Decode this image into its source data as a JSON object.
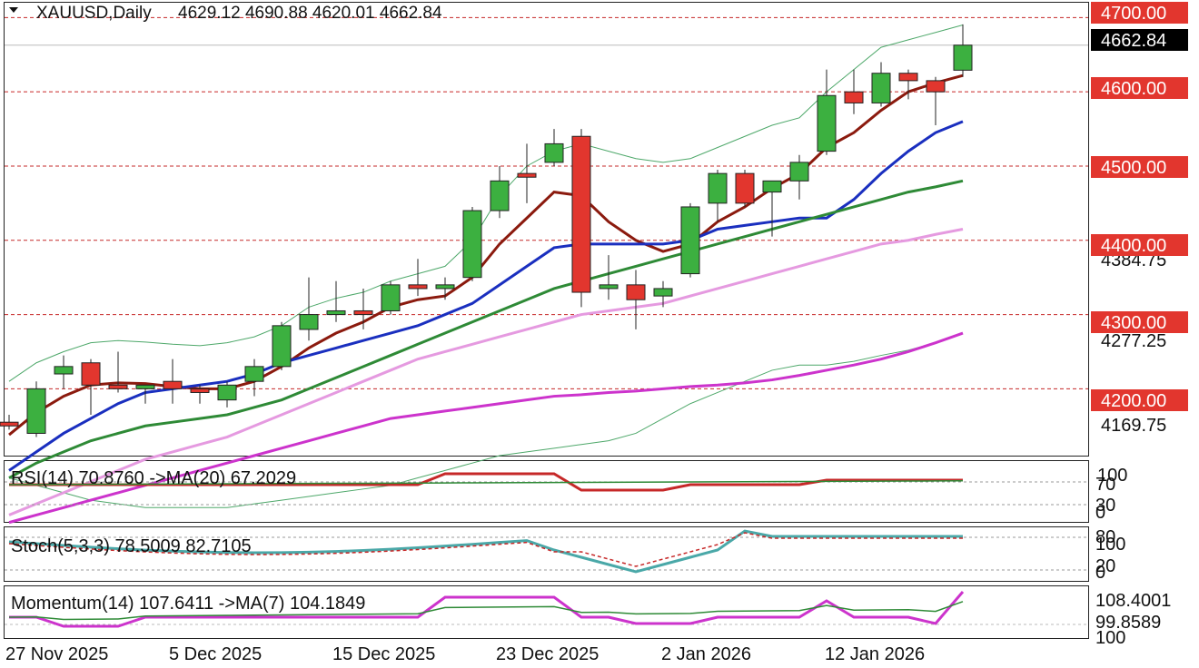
{
  "header": {
    "symbol": "XAUUSD,Daily",
    "ohlc": "4629.12 4690.88 4620.01 4662.84"
  },
  "price_axis": {
    "current_price": "4662.84",
    "level_labels": [
      "4700.00",
      "4600.00",
      "4500.00",
      "4400.00",
      "4300.00",
      "4200.00"
    ],
    "plain_labels": [
      "4384.75",
      "4277.25",
      "4169.75"
    ]
  },
  "indicators": {
    "rsi": {
      "label": "RSI(14) 70.8760  ->MA(20) 67.2029",
      "scale": [
        "100",
        "70",
        "30",
        "0"
      ]
    },
    "stoch": {
      "label": "Stoch(5,3,3) 78.5009 82.7105",
      "scale": [
        "80",
        "100",
        "20",
        "0"
      ]
    },
    "momentum": {
      "label": "Momentum(14) 107.6411  ->MA(7) 104.1849",
      "scale": [
        "108.4001",
        "99.8589",
        "100"
      ]
    }
  },
  "time_axis": {
    "labels": [
      "27 Nov 2025",
      "5 Dec 2025",
      "15 Dec 2025",
      "23 Dec 2025",
      "2 Jan 2026",
      "12 Jan 2026"
    ]
  },
  "colors": {
    "bull": "#3cb040",
    "bear": "#e2362e",
    "ma_fast": "#8b1a0e",
    "ma_mid": "#1a2fbf",
    "ma_slow": "#2e8a36",
    "ma_pink": "#e59ae0",
    "ma_magenta": "#cc33cc",
    "band": "#4ea86a",
    "level": "#c62828",
    "rsi_line": "#c62828",
    "rsi_ma": "#2e8a36",
    "stoch_main": "#4aa8a8",
    "stoch_signal": "#c62828",
    "momentum_main": "#cc33cc",
    "momentum_ma": "#2e8a36"
  },
  "chart_data": {
    "type": "candlestick",
    "symbol": "XAUUSD",
    "timeframe": "Daily",
    "ylim": [
      4110,
      4720
    ],
    "grid": false,
    "candles": [
      {
        "o": 4155,
        "h": 4165,
        "l": 4145,
        "c": 4150
      },
      {
        "o": 4140,
        "h": 4210,
        "l": 4135,
        "c": 4200
      },
      {
        "o": 4220,
        "h": 4245,
        "l": 4200,
        "c": 4230
      },
      {
        "o": 4235,
        "h": 4240,
        "l": 4165,
        "c": 4205
      },
      {
        "o": 4205,
        "h": 4250,
        "l": 4195,
        "c": 4200
      },
      {
        "o": 4200,
        "h": 4205,
        "l": 4180,
        "c": 4205
      },
      {
        "o": 4210,
        "h": 4240,
        "l": 4180,
        "c": 4200
      },
      {
        "o": 4200,
        "h": 4205,
        "l": 4180,
        "c": 4195
      },
      {
        "o": 4185,
        "h": 4210,
        "l": 4175,
        "c": 4205
      },
      {
        "o": 4210,
        "h": 4240,
        "l": 4190,
        "c": 4230
      },
      {
        "o": 4230,
        "h": 4290,
        "l": 4225,
        "c": 4285
      },
      {
        "o": 4280,
        "h": 4350,
        "l": 4265,
        "c": 4300
      },
      {
        "o": 4300,
        "h": 4345,
        "l": 4290,
        "c": 4305
      },
      {
        "o": 4305,
        "h": 4335,
        "l": 4280,
        "c": 4300
      },
      {
        "o": 4305,
        "h": 4345,
        "l": 4300,
        "c": 4340
      },
      {
        "o": 4340,
        "h": 4375,
        "l": 4325,
        "c": 4335
      },
      {
        "o": 4335,
        "h": 4350,
        "l": 4320,
        "c": 4340
      },
      {
        "o": 4350,
        "h": 4445,
        "l": 4345,
        "c": 4440
      },
      {
        "o": 4440,
        "h": 4500,
        "l": 4430,
        "c": 4480
      },
      {
        "o": 4490,
        "h": 4530,
        "l": 4450,
        "c": 4485
      },
      {
        "o": 4505,
        "h": 4550,
        "l": 4500,
        "c": 4530
      },
      {
        "o": 4540,
        "h": 4550,
        "l": 4310,
        "c": 4330
      },
      {
        "o": 4335,
        "h": 4380,
        "l": 4320,
        "c": 4340
      },
      {
        "o": 4340,
        "h": 4360,
        "l": 4280,
        "c": 4320
      },
      {
        "o": 4325,
        "h": 4345,
        "l": 4310,
        "c": 4335
      },
      {
        "o": 4355,
        "h": 4450,
        "l": 4350,
        "c": 4445
      },
      {
        "o": 4450,
        "h": 4495,
        "l": 4425,
        "c": 4490
      },
      {
        "o": 4490,
        "h": 4495,
        "l": 4445,
        "c": 4450
      },
      {
        "o": 4465,
        "h": 4475,
        "l": 4405,
        "c": 4480
      },
      {
        "o": 4480,
        "h": 4515,
        "l": 4455,
        "c": 4505
      },
      {
        "o": 4520,
        "h": 4630,
        "l": 4515,
        "c": 4595
      },
      {
        "o": 4600,
        "h": 4630,
        "l": 4570,
        "c": 4585
      },
      {
        "o": 4585,
        "h": 4640,
        "l": 4580,
        "c": 4625
      },
      {
        "o": 4625,
        "h": 4630,
        "l": 4590,
        "c": 4615
      },
      {
        "o": 4615,
        "h": 4620,
        "l": 4555,
        "c": 4600
      },
      {
        "o": 4629.12,
        "h": 4690.88,
        "l": 4620.01,
        "c": 4662.84
      }
    ],
    "moving_averages": [
      {
        "color": "#8b1a0e",
        "values": [
          4138,
          4168,
          4190,
          4205,
          4208,
          4207,
          4203,
          4200,
          4200,
          4210,
          4230,
          4255,
          4275,
          4290,
          4310,
          4320,
          4325,
          4350,
          4395,
          4430,
          4465,
          4460,
          4425,
          4400,
          4385,
          4395,
          4425,
          4445,
          4470,
          4490,
          4525,
          4545,
          4575,
          4600,
          4612,
          4622
        ]
      },
      {
        "color": "#1a2fbf",
        "values": [
          4090,
          4115,
          4140,
          4160,
          4180,
          4195,
          4200,
          4205,
          4210,
          4220,
          4235,
          4245,
          4255,
          4265,
          4275,
          4285,
          4300,
          4315,
          4340,
          4365,
          4390,
          4395,
          4395,
          4395,
          4395,
          4400,
          4415,
          4420,
          4425,
          4430,
          4430,
          4455,
          4490,
          4520,
          4545,
          4560
        ]
      },
      {
        "color": "#2e8a36",
        "values": [
          4080,
          4100,
          4115,
          4130,
          4140,
          4150,
          4155,
          4160,
          4165,
          4175,
          4185,
          4200,
          4215,
          4230,
          4245,
          4260,
          4275,
          4290,
          4305,
          4320,
          4335,
          4345,
          4355,
          4365,
          4375,
          4385,
          4395,
          4405,
          4415,
          4425,
          4435,
          4445,
          4455,
          4465,
          4472,
          4480
        ]
      },
      {
        "color": "#e59ae0",
        "values": [
          4030,
          4045,
          4060,
          4075,
          4090,
          4105,
          4115,
          4125,
          4135,
          4150,
          4165,
          4180,
          4195,
          4210,
          4225,
          4240,
          4250,
          4260,
          4270,
          4280,
          4290,
          4300,
          4305,
          4310,
          4315,
          4325,
          4335,
          4345,
          4355,
          4365,
          4375,
          4385,
          4395,
          4400,
          4408,
          4415
        ]
      },
      {
        "color": "#cc33cc",
        "values": [
          4020,
          4030,
          4040,
          4050,
          4060,
          4070,
          4080,
          4090,
          4100,
          4110,
          4120,
          4130,
          4140,
          4150,
          4160,
          4165,
          4170,
          4175,
          4180,
          4185,
          4190,
          4192,
          4195,
          4197,
          4200,
          4203,
          4205,
          4208,
          4212,
          4218,
          4225,
          4232,
          4240,
          4250,
          4262,
          4275
        ]
      }
    ],
    "envelope": {
      "color": "#4ea86a",
      "upper": [
        4210,
        4235,
        4250,
        4262,
        4265,
        4263,
        4260,
        4258,
        4262,
        4270,
        4285,
        4310,
        4322,
        4330,
        4345,
        4355,
        4365,
        4400,
        4460,
        4500,
        4520,
        4530,
        4520,
        4510,
        4505,
        4510,
        4525,
        4540,
        4555,
        4565,
        4600,
        4630,
        4660,
        4670,
        4680,
        4690
      ],
      "lower": [
        4080,
        4070,
        4060,
        4050,
        4045,
        4040,
        4040,
        4040,
        4040,
        4045,
        4050,
        4055,
        4060,
        4065,
        4070,
        4080,
        4090,
        4100,
        4110,
        4115,
        4120,
        4125,
        4130,
        4140,
        4160,
        4180,
        4195,
        4210,
        4225,
        4232,
        4232,
        4237,
        4245,
        4252,
        4262,
        4275
      ]
    }
  }
}
